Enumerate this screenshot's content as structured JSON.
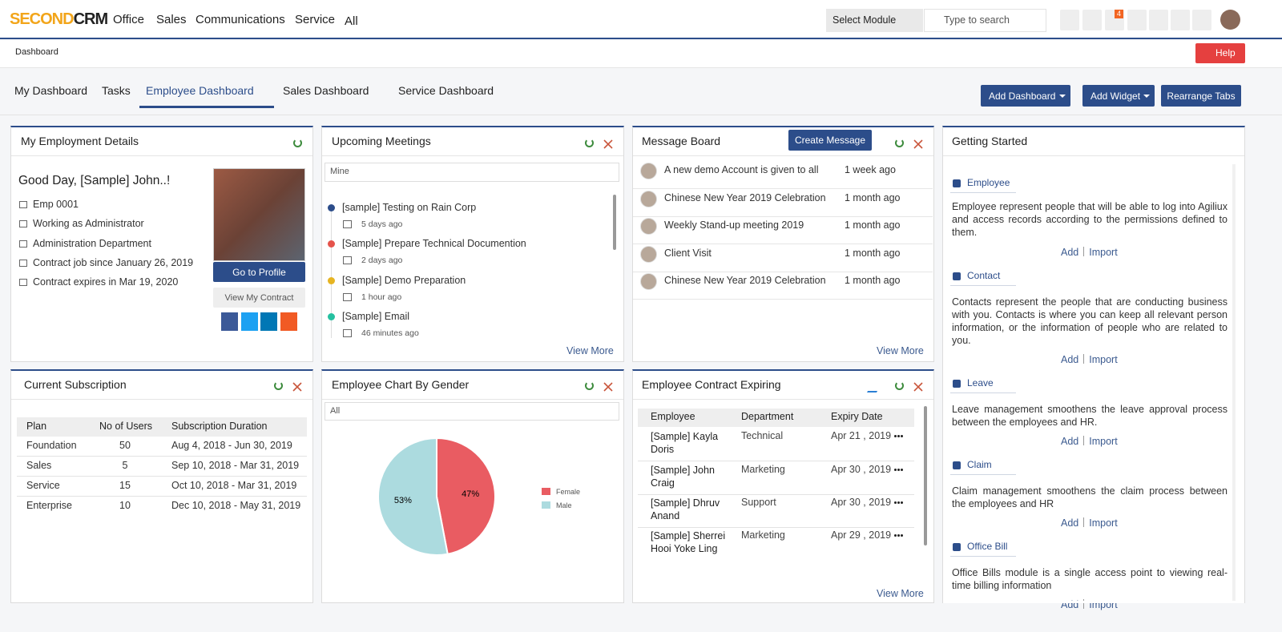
{
  "nav": {
    "logo": {
      "first": "SECOND",
      "second": "CRM"
    },
    "menu": [
      "Office",
      "Sales",
      "Communications",
      "Service",
      "All"
    ],
    "module_select": "Select Module",
    "search_placeholder": "Type to search",
    "notification_count": "4"
  },
  "breadcrumb": "Dashboard",
  "help": "Help",
  "tabs": [
    "My Dashboard",
    "Tasks",
    "Employee Dashboard",
    "Sales Dashboard",
    "Service Dashboard"
  ],
  "actions": [
    "Add Dashboard",
    "Add Widget",
    "Rearrange Tabs"
  ],
  "employment": {
    "title": "My Employment Details",
    "greeting": "Good Day, [Sample] John..!",
    "details": [
      "Emp 0001",
      "Working as Administrator",
      "Administration Department",
      "Contract job since January 26, 2019",
      "Contract expires in Mar 19, 2020"
    ],
    "profile_button": "Go to Profile",
    "contract_button": "View My Contract"
  },
  "meetings": {
    "title": "Upcoming Meetings",
    "filter": "Mine",
    "items": [
      {
        "title": "[sample] Testing on Rain Corp",
        "time": "5 days ago"
      },
      {
        "title": "[Sample] Prepare Technical Documention",
        "time": "2 days ago"
      },
      {
        "title": "[Sample] Demo Preparation",
        "time": "1 hour ago"
      },
      {
        "title": "[Sample] Email",
        "time": "46 minutes ago"
      }
    ],
    "more": "View More"
  },
  "messages": {
    "title": "Message Board",
    "create": "Create Message",
    "items": [
      {
        "text": "A new demo Account is given to all",
        "time": "1 week ago"
      },
      {
        "text": "Chinese New Year 2019 Celebration",
        "time": "1 month ago"
      },
      {
        "text": "Weekly Stand-up meeting 2019",
        "time": "1 month ago"
      },
      {
        "text": "Client Visit",
        "time": "1 month ago"
      },
      {
        "text": "Chinese New Year 2019 Celebration",
        "time": "1 month ago"
      }
    ],
    "more": "View More"
  },
  "getting_started": {
    "title": "Getting Started",
    "sections": [
      {
        "name": "Employee",
        "description": "Employee represent people that will be able to log into Agiliux and access records according to the permissions defined to them.",
        "actions": [
          "Add",
          "Import"
        ]
      },
      {
        "name": "Contact",
        "description": "Contacts represent the people that are conducting business with you. Contacts is where you can keep all relevant person information, or the information of people who are related to you.",
        "actions": [
          "Add",
          "Import"
        ]
      },
      {
        "name": "Leave",
        "description": "Leave management smoothens the leave approval process between the employees and HR.",
        "actions": [
          "Add",
          "Import"
        ]
      },
      {
        "name": "Claim",
        "description": "Claim management smoothens the claim process between the employees and HR",
        "actions": [
          "Add",
          "Import"
        ]
      },
      {
        "name": "Office Bill",
        "description": "Office Bills module is a single access point to viewing real-time billing information",
        "actions": [
          "Add",
          "Import"
        ]
      }
    ]
  },
  "subscription": {
    "title": "Current Subscription",
    "columns": [
      "Plan",
      "No of Users",
      "Subscription Duration"
    ],
    "rows": [
      [
        "Foundation",
        "50",
        "Aug 4, 2018 - Jun 30, 2019"
      ],
      [
        "Sales",
        "5",
        "Sep 10, 2018 - Mar 31, 2019"
      ],
      [
        "Service",
        "15",
        "Oct 10, 2018 - Mar 31, 2019"
      ],
      [
        "Enterprise",
        "10",
        "Dec 10, 2018 - May 31, 2019"
      ]
    ]
  },
  "gender_chart": {
    "type": "pie",
    "title": "Employee Chart By Gender",
    "filter": "All",
    "categories": [
      "Female",
      "Male"
    ],
    "values": [
      47,
      53
    ],
    "value_labels": [
      "47%",
      "53%"
    ],
    "colors": [
      "#e95c62",
      "#acdbdf"
    ]
  },
  "contracts": {
    "title": "Employee Contract Expiring",
    "columns": [
      "Employee",
      "Department",
      "Expiry Date"
    ],
    "rows": [
      [
        "[Sample] Kayla Doris",
        "Technical",
        "Apr 21 , 2019"
      ],
      [
        "[Sample] John Craig",
        "Marketing",
        "Apr 30 , 2019"
      ],
      [
        "[Sample] Dhruv Anand",
        "Support",
        "Apr 30 , 2019"
      ],
      [
        "[Sample] Sherrei Hooi Yoke Ling",
        "Marketing",
        "Apr 29 , 2019"
      ]
    ],
    "more": "View More"
  }
}
